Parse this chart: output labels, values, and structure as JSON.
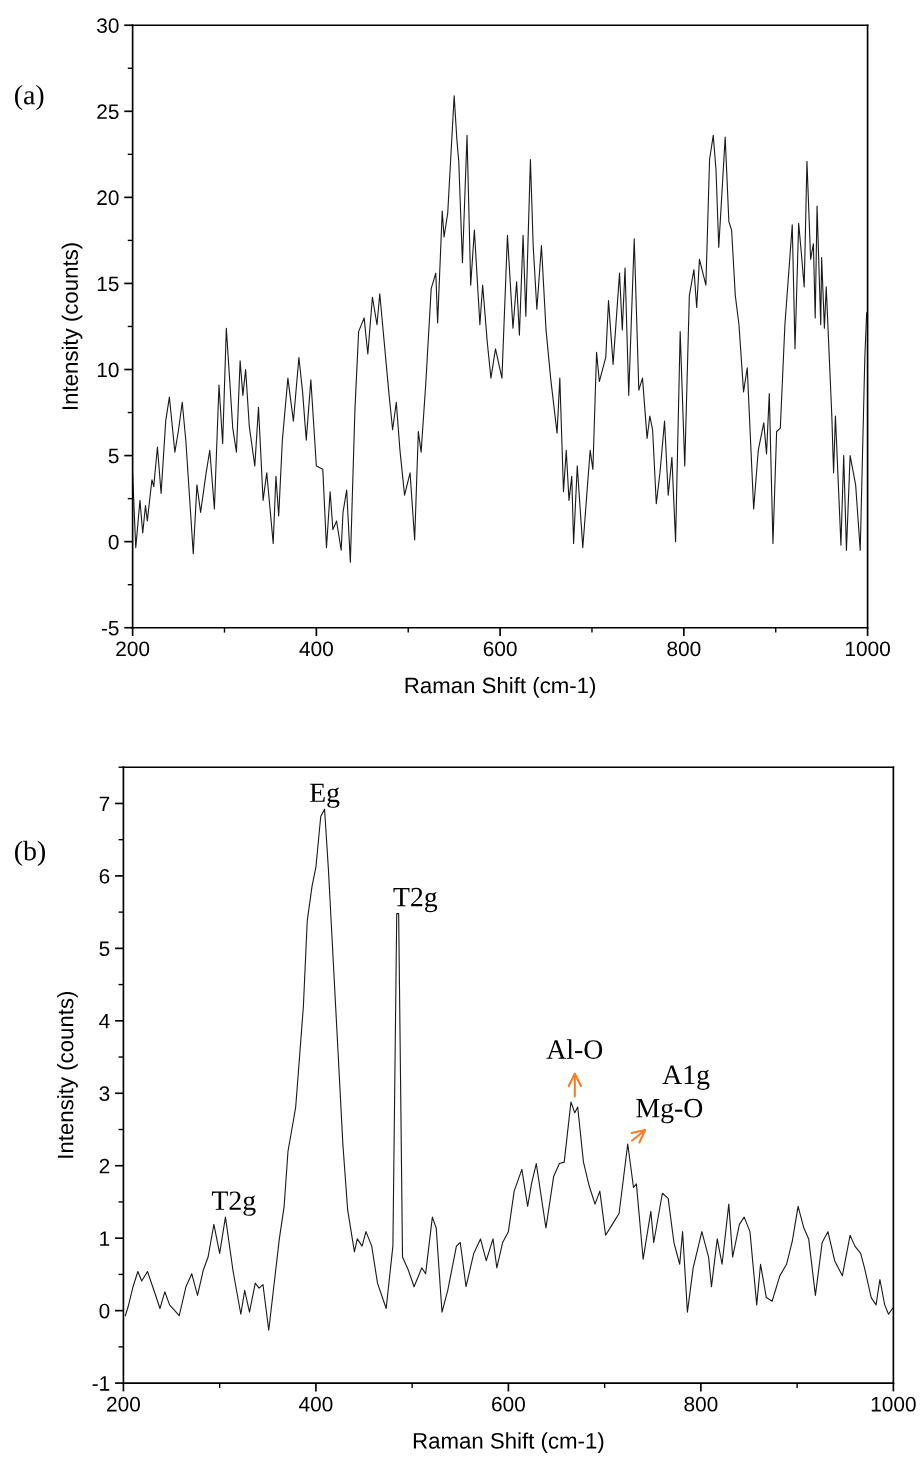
{
  "chart_data": [
    {
      "type": "line",
      "xlabel": "Raman Shift (cm-1)",
      "ylabel": "Intensity (counts)",
      "annotations": [
        "(a)"
      ],
      "xlim": [
        200,
        1000
      ],
      "xticks": [
        200,
        400,
        600,
        800,
        1000
      ],
      "ylim": [
        -5,
        30
      ],
      "yticks": [
        -5,
        0,
        5,
        10,
        15,
        20,
        25,
        30
      ],
      "series": [
        {
          "color": "#1a1a1a",
          "x": [
            200,
            203.4,
            208,
            211,
            214,
            216,
            221,
            223,
            227,
            231,
            236,
            240,
            246,
            250,
            254,
            258,
            266,
            270,
            274,
            280,
            284,
            289,
            294,
            298,
            302,
            309,
            313,
            317,
            320,
            323,
            327,
            333,
            337,
            342,
            346,
            353,
            356,
            359,
            363,
            369,
            375,
            381,
            385,
            389,
            394,
            400,
            407,
            411,
            415,
            418,
            422,
            427,
            429,
            433,
            437,
            442,
            446,
            452,
            456,
            461,
            466,
            469,
            479,
            483,
            487,
            491,
            496,
            502,
            507,
            511,
            514,
            519,
            525,
            530,
            532,
            537,
            539,
            543,
            550,
            553,
            555,
            559,
            564,
            568,
            572,
            578,
            581,
            586,
            590,
            595,
            602,
            608,
            614,
            618,
            621,
            625,
            628,
            633,
            636,
            640,
            645,
            650,
            655,
            662,
            665,
            669,
            672,
            675,
            678,
            680,
            684,
            690,
            698,
            701,
            705,
            708,
            715,
            718,
            723,
            730,
            733,
            736,
            740,
            746,
            751,
            755,
            760,
            763,
            766,
            770,
            774,
            779,
            783,
            787,
            791,
            796,
            801,
            806,
            811,
            814,
            817,
            824,
            828,
            832,
            835,
            838,
            845,
            849,
            852,
            856,
            860,
            865,
            869,
            876,
            881,
            887,
            890,
            893,
            897,
            901,
            905,
            910,
            918,
            921,
            925,
            928,
            931,
            934,
            938,
            941,
            943,
            945,
            949,
            950,
            953,
            955,
            961,
            963,
            965,
            971,
            974,
            977,
            981,
            987,
            992,
            997,
            999
          ],
          "values": [
            3.95,
            -0.35,
            2.4,
            0.5,
            2.1,
            1.2,
            3.6,
            3.2,
            5.5,
            2.8,
            7.0,
            8.4,
            5.2,
            6.5,
            8.1,
            5.8,
            -0.7,
            3.3,
            1.7,
            4.0,
            5.3,
            1.9,
            9.1,
            5.7,
            12.4,
            6.6,
            5.2,
            10.5,
            8.5,
            10.0,
            6.7,
            4.4,
            7.8,
            2.4,
            4.0,
            -0.1,
            3.8,
            1.5,
            5.9,
            9.5,
            7.0,
            10.7,
            8.7,
            5.9,
            9.4,
            4.4,
            4.2,
            -0.35,
            2.9,
            0.7,
            1.2,
            -0.5,
            1.7,
            3.0,
            -1.2,
            7.7,
            12.2,
            13.0,
            10.9,
            14.2,
            12.6,
            14.4,
            8.6,
            6.5,
            8.1,
            5.3,
            2.7,
            4.0,
            0.1,
            6.4,
            5.2,
            9.1,
            14.7,
            15.6,
            12.7,
            19.2,
            17.7,
            19.1,
            25.9,
            23.3,
            22.1,
            16.2,
            23.6,
            14.9,
            18.1,
            12.6,
            14.9,
            11.6,
            9.5,
            11.2,
            9.5,
            17.8,
            12.4,
            15.1,
            12.0,
            17.8,
            13.1,
            22.2,
            17.2,
            13.5,
            17.2,
            12.3,
            9.5,
            6.3,
            9.5,
            2.9,
            5.3,
            2.4,
            3.8,
            -0.1,
            4.4,
            -0.35,
            5.3,
            4.2,
            11.0,
            9.3,
            10.7,
            14.0,
            10.3,
            15.6,
            12.3,
            15.9,
            8.5,
            17.6,
            8.8,
            9.5,
            6.0,
            7.3,
            6.5,
            2.2,
            4.0,
            7.0,
            2.7,
            4.9,
            0.0,
            12.2,
            4.4,
            14.3,
            15.8,
            13.6,
            16.4,
            14.9,
            22.2,
            23.6,
            21.6,
            17.1,
            23.5,
            18.6,
            18.1,
            14.3,
            12.6,
            8.7,
            10.1,
            1.9,
            5.3,
            6.9,
            5.1,
            8.6,
            -0.1,
            6.4,
            6.6,
            12.6,
            18.4,
            11.2,
            18.5,
            16.7,
            14.8,
            22.1,
            16.4,
            17.3,
            13.0,
            19.5,
            12.6,
            16.5,
            12.4,
            14.8,
            7.4,
            4.0,
            7.3,
            -0.2,
            5.0,
            -0.5,
            5.0,
            3.3,
            -0.5,
            10.7,
            13.3
          ]
        }
      ]
    },
    {
      "type": "line",
      "xlabel": "Raman Shift (cm-1)",
      "ylabel": "Intensity (counts)",
      "xlim": [
        200,
        1000
      ],
      "xticks": [
        200,
        400,
        600,
        800,
        1000
      ],
      "ylim": [
        -1,
        7.5
      ],
      "yticks": [
        -1,
        0,
        1,
        2,
        3,
        4,
        5,
        6,
        7
      ],
      "annotations": [
        "(b)",
        {
          "text": "Eg",
          "x": 409,
          "y": 6.92
        },
        {
          "text": "T2g",
          "x": 486,
          "y": 5.48
        },
        {
          "text": "T2g",
          "x": 306,
          "y": 1.29
        },
        {
          "text": "A1g",
          "x": 724,
          "y": 2.3
        },
        {
          "text": "Al-O",
          "x": 669,
          "y": 2.88
        },
        {
          "text": "Mg-O",
          "x": 724,
          "y": 2.3
        }
      ],
      "series": [
        {
          "color": "#1a1a1a",
          "x": [
            202,
            205,
            210,
            215,
            219,
            225,
            233,
            238,
            243,
            248,
            258,
            265,
            271,
            277,
            283,
            288,
            294,
            300,
            306,
            314,
            322,
            326,
            331,
            337,
            341,
            345,
            351,
            362,
            367,
            371,
            375,
            379,
            383,
            387,
            391,
            396,
            400,
            405,
            409,
            413,
            417,
            423,
            428,
            433,
            440,
            443,
            448,
            452,
            458,
            464,
            473,
            480,
            484,
            486,
            490,
            496,
            502,
            510,
            514,
            521,
            525,
            531,
            537,
            546,
            550,
            556,
            564,
            571,
            577,
            584,
            588,
            594,
            600,
            606,
            614,
            620,
            624,
            629,
            639,
            647,
            653,
            658,
            665,
            669,
            672,
            678,
            684,
            690,
            695,
            701,
            708,
            715,
            724,
            730,
            733,
            740,
            748,
            751,
            760,
            766,
            772,
            778,
            781,
            786,
            792,
            801,
            808,
            811,
            817,
            822,
            829,
            833,
            840,
            845,
            851,
            858,
            862,
            868,
            874,
            882,
            889,
            895,
            901,
            907,
            912,
            919,
            926,
            932,
            939,
            947,
            955,
            960,
            966,
            970,
            977,
            982,
            986,
            991,
            995,
            999
          ],
          "values": [
            -0.07,
            0.06,
            0.33,
            0.54,
            0.41,
            0.54,
            0.23,
            0.03,
            0.26,
            0.08,
            -0.07,
            0.33,
            0.51,
            0.21,
            0.56,
            0.74,
            1.19,
            0.79,
            1.29,
            0.54,
            -0.05,
            0.28,
            -0.02,
            0.38,
            0.31,
            0.36,
            -0.27,
            0.99,
            1.44,
            2.2,
            2.5,
            2.81,
            3.5,
            4.2,
            5.38,
            5.86,
            6.12,
            6.82,
            6.92,
            6.09,
            5.08,
            3.57,
            2.3,
            1.39,
            0.81,
            0.99,
            0.89,
            1.09,
            0.89,
            0.38,
            0.03,
            0.89,
            5.48,
            5.48,
            0.74,
            0.56,
            0.33,
            0.59,
            0.51,
            1.29,
            1.14,
            -0.02,
            0.28,
            0.89,
            0.94,
            0.33,
            0.79,
            0.99,
            0.69,
            0.99,
            0.59,
            0.94,
            1.09,
            1.65,
            1.95,
            1.44,
            1.75,
            2.03,
            1.14,
            1.85,
            2.03,
            2.05,
            2.88,
            2.73,
            2.81,
            2.05,
            1.72,
            1.47,
            1.65,
            1.04,
            1.19,
            1.34,
            2.3,
            1.7,
            1.75,
            0.71,
            1.37,
            0.94,
            1.62,
            1.55,
            0.94,
            0.64,
            1.09,
            -0.02,
            0.59,
            1.09,
            0.74,
            0.33,
            0.99,
            0.64,
            1.47,
            0.74,
            1.19,
            1.29,
            1.09,
            0.08,
            0.64,
            0.18,
            0.13,
            0.48,
            0.64,
            0.96,
            1.44,
            1.14,
            0.99,
            0.21,
            0.94,
            1.09,
            0.69,
            0.48,
            1.04,
            0.89,
            0.79,
            0.59,
            0.18,
            0.08,
            0.43,
            0.08,
            -0.05,
            0.03
          ]
        }
      ]
    }
  ]
}
